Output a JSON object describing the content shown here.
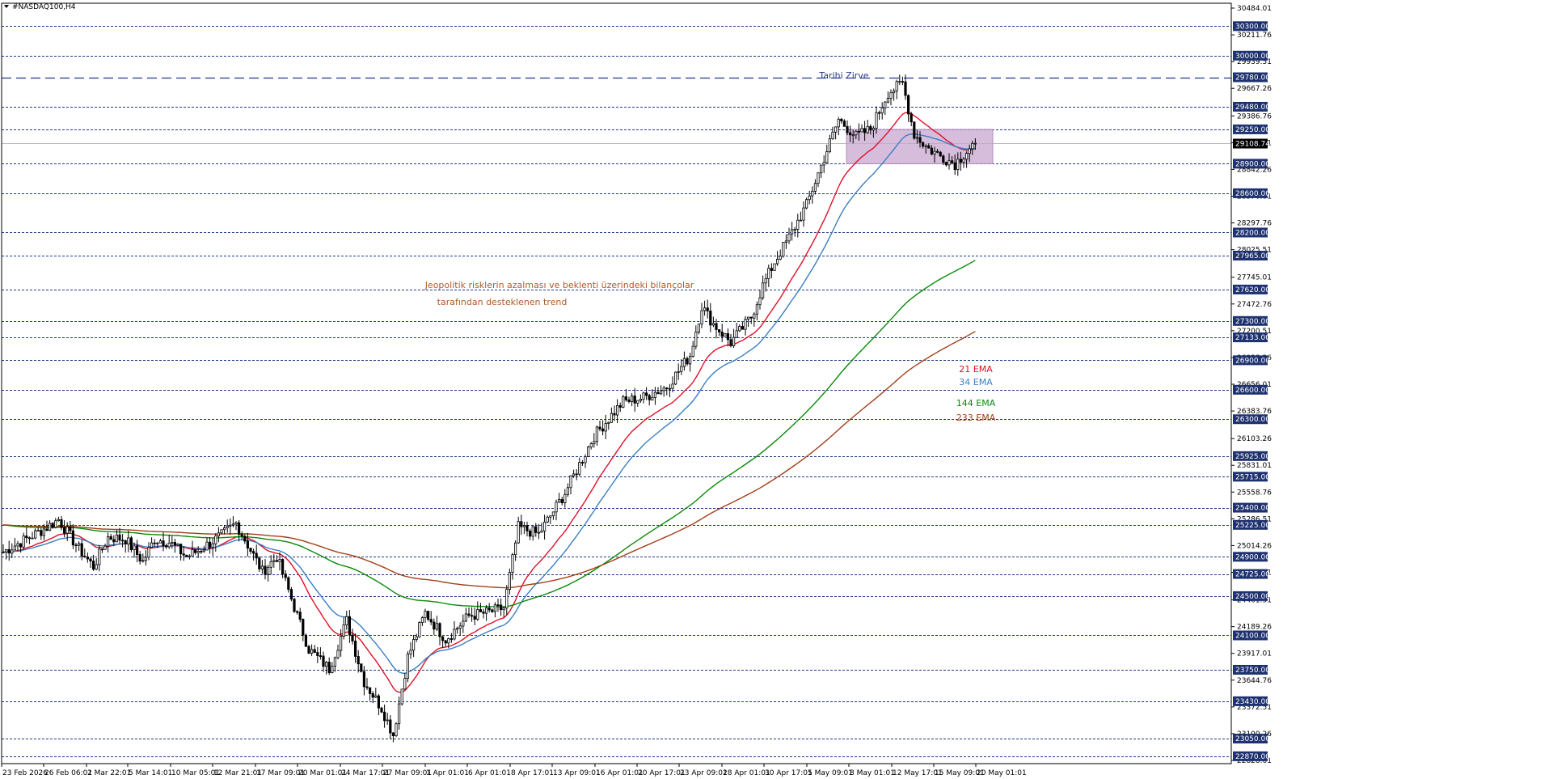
{
  "chart_data": {
    "type": "candlestick",
    "title": "#NASDAQ100,H4",
    "y_axis_ticks": [
      30484.01,
      30211.76,
      29939.51,
      29667.26,
      29386.76,
      29114.51,
      28842.26,
      28570.01,
      28297.76,
      28025.51,
      27745.01,
      27472.76,
      27200.51,
      26928.26,
      26656.01,
      26383.76,
      26103.26,
      25831.01,
      25558.76,
      25286.51,
      25014.26,
      24742.01,
      24461.51,
      24189.26,
      23917.01,
      23644.76,
      23372.51,
      23100.26,
      22828.01
    ],
    "ylim": [
      22828.01,
      30484.01
    ],
    "horizontal_levels": [
      30300.0,
      30000.0,
      29780.0,
      29480.0,
      29250.0,
      28900.0,
      28600.0,
      28200.0,
      27965.0,
      27620.0,
      27300.0,
      27133.0,
      26900.0,
      26600.0,
      26300.0,
      25925.0,
      25715.0,
      25400.0,
      25225.0,
      24900.0,
      24725.0,
      24500.0,
      24100.0,
      23750.0,
      23430.0,
      23050.0,
      22870.0
    ],
    "current_price": "29108.74",
    "x_labels": [
      "23 Feb 2026",
      "26 Feb 06:01",
      "2 Mar 22:01",
      "5 Mar 14:01",
      "10 Mar 05:01",
      "12 Mar 21:01",
      "17 Mar 09:01",
      "20 Mar 01:01",
      "24 Mar 17:01",
      "27 Mar 09:01",
      "1 Apr 01:01",
      "6 Apr 01:01",
      "8 Apr 17:01",
      "13 Apr 09:01",
      "16 Apr 01:01",
      "20 Apr 17:01",
      "23 Apr 09:01",
      "28 Apr 01:01",
      "30 Apr 17:01",
      "5 May 09:01",
      "8 May 01:01",
      "12 May 17:01",
      "15 May 09:01",
      "20 May 01:01"
    ],
    "price_path": [
      [
        0,
        24950
      ],
      [
        15,
        25200
      ],
      [
        19,
        25280
      ],
      [
        26,
        24980
      ],
      [
        31,
        24800
      ],
      [
        36,
        25100
      ],
      [
        42,
        25080
      ],
      [
        48,
        24850
      ],
      [
        52,
        25080
      ],
      [
        57,
        25050
      ],
      [
        63,
        24900
      ],
      [
        68,
        24980
      ],
      [
        75,
        25120
      ],
      [
        80,
        25240
      ],
      [
        89,
        24750
      ],
      [
        94,
        24900
      ],
      [
        105,
        23960
      ],
      [
        112,
        23760
      ],
      [
        118,
        24250
      ],
      [
        124,
        23630
      ],
      [
        130,
        23360
      ],
      [
        134,
        23090
      ],
      [
        139,
        23880
      ],
      [
        145,
        24330
      ],
      [
        152,
        24060
      ],
      [
        160,
        24300
      ],
      [
        166,
        24330
      ],
      [
        172,
        24380
      ],
      [
        177,
        25200
      ],
      [
        184,
        25130
      ],
      [
        193,
        25550
      ],
      [
        203,
        26130
      ],
      [
        213,
        26480
      ],
      [
        220,
        26520
      ],
      [
        228,
        26630
      ],
      [
        236,
        26950
      ],
      [
        240,
        27450
      ],
      [
        244,
        27270
      ],
      [
        250,
        27080
      ],
      [
        257,
        27340
      ],
      [
        261,
        27660
      ],
      [
        265,
        27900
      ],
      [
        270,
        28150
      ],
      [
        276,
        28480
      ],
      [
        280,
        28800
      ],
      [
        287,
        29350
      ],
      [
        293,
        29180
      ],
      [
        298,
        29250
      ],
      [
        304,
        29620
      ],
      [
        309,
        29720
      ],
      [
        313,
        29200
      ],
      [
        318,
        29050
      ],
      [
        322,
        28980
      ],
      [
        327,
        28900
      ],
      [
        332,
        29060
      ],
      [
        334,
        29108.74
      ]
    ],
    "series": [
      {
        "name": "21 EMA",
        "color": "#e0102a",
        "period": 21
      },
      {
        "name": "34 EMA",
        "color": "#3a7fc4",
        "period": 34
      },
      {
        "name": "144 EMA",
        "color": "#0a8a0a",
        "period": 144
      },
      {
        "name": "233 EMA",
        "color": "#a0401a",
        "period": 233
      }
    ],
    "legend_position": "right"
  },
  "annotations": {
    "peak_label": "Tarihi Zirve",
    "trend_line1": "Jeopolitik risklerin azalması ve beklenti üzerindeki bilançolar",
    "trend_line2": "tarafından desteklenen trend",
    "ema21": "21 EMA",
    "ema34": "34 EMA",
    "ema144": "144 EMA",
    "ema233": "233 EMA"
  },
  "colors": {
    "level_line": "#1f3a8a",
    "level_tag_bg": "#1f3270",
    "current_tag_bg": "#000000",
    "zone_fill": "#c8a7cf",
    "annotation_text": "#b05a2a",
    "peak_text": "#2a3a8a"
  }
}
